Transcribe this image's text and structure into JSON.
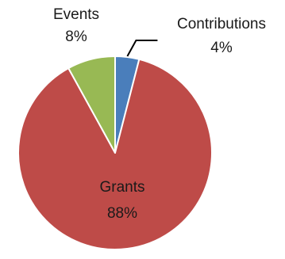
{
  "chart_data": {
    "type": "pie",
    "series": [
      {
        "slices": [
          {
            "label": "Contributions",
            "value": 4,
            "value_label": "4%",
            "color": "#4a7ebb"
          },
          {
            "label": "Grants",
            "value": 88,
            "value_label": "88%",
            "color": "#be4b48"
          },
          {
            "label": "Events",
            "value": 8,
            "value_label": "8%",
            "color": "#98b954"
          }
        ]
      }
    ],
    "start_angle_deg": 0,
    "direction": "clockwise",
    "slice_border_color": "#ffffff",
    "leader_line_color": "#000000",
    "grid": false,
    "legend": "none"
  }
}
